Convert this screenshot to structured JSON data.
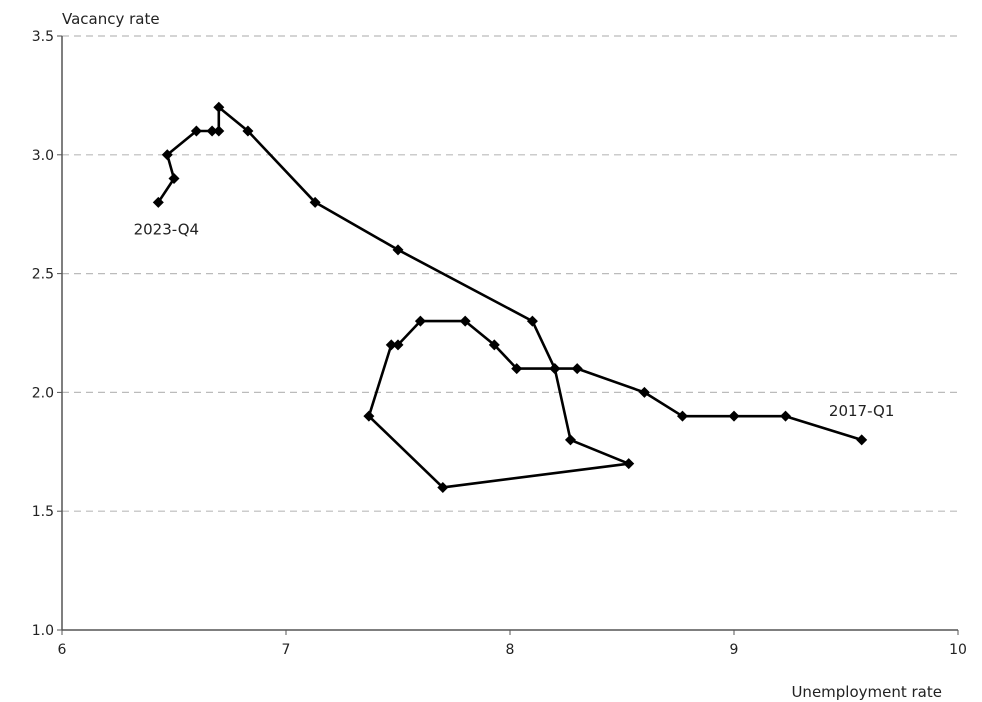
{
  "chart_data": {
    "type": "scatter",
    "mode": "connected-line-with-markers",
    "title": "",
    "xlabel": "Unemployment rate",
    "ylabel": "Vacancy rate",
    "xlim": [
      6,
      10
    ],
    "ylim": [
      1.0,
      3.5
    ],
    "xticks": [
      "6",
      "7",
      "8",
      "9",
      "10"
    ],
    "yticks": [
      "1.0",
      "1.5",
      "2.0",
      "2.5",
      "3.0",
      "3.5"
    ],
    "grid": "horizontal dashed",
    "legend": "none",
    "line_color": "#000000",
    "grid_color": "#bbbbbb",
    "axis_color": "#555555",
    "annotations": [
      {
        "text": "2017-Q1",
        "x": 9.57,
        "y": 1.8
      },
      {
        "text": "2023-Q4",
        "x": 6.43,
        "y": 2.8
      }
    ],
    "series": [
      {
        "points": [
          {
            "x": 9.57,
            "y": 1.8
          },
          {
            "x": 9.23,
            "y": 1.9
          },
          {
            "x": 9.0,
            "y": 1.9
          },
          {
            "x": 8.77,
            "y": 1.9
          },
          {
            "x": 8.6,
            "y": 2.0
          },
          {
            "x": 8.3,
            "y": 2.1
          },
          {
            "x": 8.2,
            "y": 2.1
          },
          {
            "x": 8.03,
            "y": 2.1
          },
          {
            "x": 7.93,
            "y": 2.2
          },
          {
            "x": 7.8,
            "y": 2.3
          },
          {
            "x": 7.6,
            "y": 2.3
          },
          {
            "x": 7.5,
            "y": 2.2
          },
          {
            "x": 7.47,
            "y": 2.2
          },
          {
            "x": 7.37,
            "y": 1.9
          },
          {
            "x": 7.7,
            "y": 1.6
          },
          {
            "x": 8.53,
            "y": 1.7
          },
          {
            "x": 8.27,
            "y": 1.8
          },
          {
            "x": 8.2,
            "y": 2.1
          },
          {
            "x": 8.1,
            "y": 2.3
          },
          {
            "x": 7.5,
            "y": 2.6
          },
          {
            "x": 7.13,
            "y": 2.8
          },
          {
            "x": 6.83,
            "y": 3.1
          },
          {
            "x": 6.7,
            "y": 3.2
          },
          {
            "x": 6.7,
            "y": 3.1
          },
          {
            "x": 6.67,
            "y": 3.1
          },
          {
            "x": 6.6,
            "y": 3.1
          },
          {
            "x": 6.47,
            "y": 3.0
          },
          {
            "x": 6.5,
            "y": 2.9
          },
          {
            "x": 6.43,
            "y": 2.8
          }
        ]
      }
    ]
  }
}
